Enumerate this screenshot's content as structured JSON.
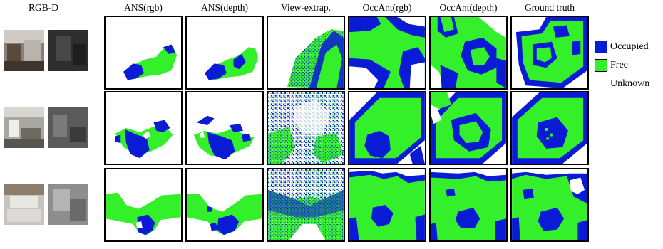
{
  "rgbd_header": "RGB-D",
  "columns": [
    "ANS(rgb)",
    "ANS(depth)",
    "View-extrap.",
    "OccAnt(rgb)",
    "OccAnt(depth)",
    "Ground truth"
  ],
  "legend": [
    {
      "label": "Occupied",
      "color": "#0a1bd6"
    },
    {
      "label": "Free",
      "color": "#33f02a"
    },
    {
      "label": "Unknown",
      "color": "#ffffff"
    }
  ]
}
